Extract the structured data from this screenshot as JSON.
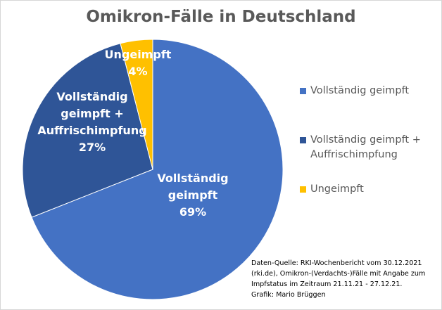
{
  "chart_data": {
    "type": "pie",
    "title": "Omikron-Fälle in Deutschland",
    "slices": [
      {
        "label": "Vollständig geimpft",
        "value": 69,
        "color": "#4472c4",
        "label_lines": [
          "Vollständig",
          "geimpft",
          "69%"
        ]
      },
      {
        "label": "Vollständig geimpft + Auffrischimpfung",
        "value": 27,
        "color": "#2f5597",
        "label_lines": [
          "Vollständig",
          "geimpft +",
          "Auffrischimpfung",
          "27%"
        ]
      },
      {
        "label": "Ungeimpft",
        "value": 4,
        "color": "#ffc000",
        "label_lines": [
          "Ungeimpft",
          "4%"
        ]
      }
    ],
    "legend_placement": "right",
    "legend": [
      {
        "text": "Vollständig geimpft",
        "color": "#4472c4"
      },
      {
        "text": "Vollständig geimpft +\nAuffrischimpfung",
        "color": "#2f5597"
      },
      {
        "text": "Ungeimpft",
        "color": "#ffc000"
      }
    ]
  },
  "source_note": [
    "Daten-Quelle: RKI-Wochenbericht vom 30.12.2021",
    "(rki.de), Omikron-(Verdachts-)Fälle mit Angabe zum",
    "Impfstatus im Zeitraum 21.11.21 - 27.12.21.",
    "Grafik: Mario Brüggen"
  ]
}
